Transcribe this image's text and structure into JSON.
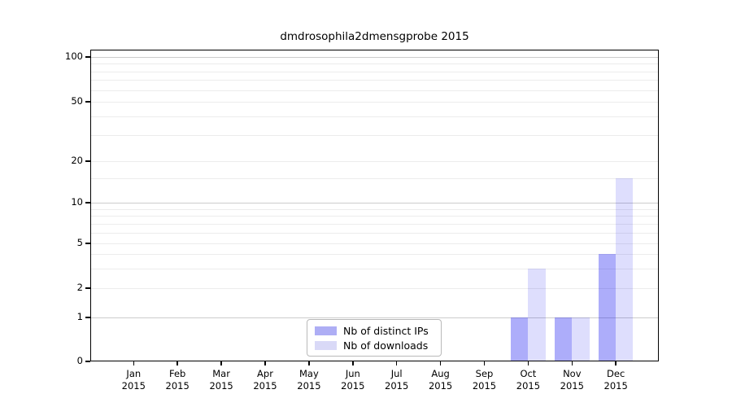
{
  "title": "dmdrosophila2dmensgprobe 2015",
  "chart_data": {
    "type": "bar",
    "title": "dmdrosophila2dmensgprobe 2015",
    "categories": [
      "Jan 2015",
      "Feb 2015",
      "Mar 2015",
      "Apr 2015",
      "May 2015",
      "Jun 2015",
      "Jul 2015",
      "Aug 2015",
      "Sep 2015",
      "Oct 2015",
      "Nov 2015",
      "Dec 2015"
    ],
    "category_lines": [
      {
        "month": "Jan",
        "year": "2015"
      },
      {
        "month": "Feb",
        "year": "2015"
      },
      {
        "month": "Mar",
        "year": "2015"
      },
      {
        "month": "Apr",
        "year": "2015"
      },
      {
        "month": "May",
        "year": "2015"
      },
      {
        "month": "Jun",
        "year": "2015"
      },
      {
        "month": "Jul",
        "year": "2015"
      },
      {
        "month": "Aug",
        "year": "2015"
      },
      {
        "month": "Sep",
        "year": "2015"
      },
      {
        "month": "Oct",
        "year": "2015"
      },
      {
        "month": "Nov",
        "year": "2015"
      },
      {
        "month": "Dec",
        "year": "2015"
      }
    ],
    "series": [
      {
        "name": "Nb of distinct IPs",
        "legend_color": "#aeaef5",
        "fill": "rgba(10,10,240,0.335)",
        "values": [
          0,
          0,
          0,
          0,
          0,
          0,
          0,
          0,
          0,
          1,
          1,
          4
        ]
      },
      {
        "name": "Nb of downloads",
        "legend_color": "#d9d9f7",
        "fill": "rgba(10,10,240,0.135)",
        "values": [
          0,
          0,
          0,
          0,
          0,
          0,
          0,
          0,
          0,
          3,
          1,
          15
        ]
      }
    ],
    "y_axis": {
      "scale": "log-like (0,1 then log spacing)",
      "tick_labels": [
        "0",
        "1",
        "2",
        "5",
        "10",
        "20",
        "50",
        "100"
      ],
      "tick_values": [
        0,
        1,
        2,
        5,
        10,
        20,
        50,
        100
      ],
      "major_gridlines": [
        1,
        10,
        100
      ],
      "minor_gridlines": [
        2,
        3,
        4,
        5,
        6,
        7,
        8,
        9,
        15,
        20,
        30,
        40,
        50,
        60,
        70,
        80,
        90
      ],
      "ylim": [
        0,
        112
      ]
    },
    "legend": {
      "position": "bottom-center-inside",
      "entries": [
        "Nb of distinct IPs",
        "Nb of downloads"
      ]
    },
    "colors": {
      "grid_major": "#cccccc",
      "grid_minor": "#ececec",
      "axis": "#000000",
      "background": "#ffffff"
    }
  }
}
